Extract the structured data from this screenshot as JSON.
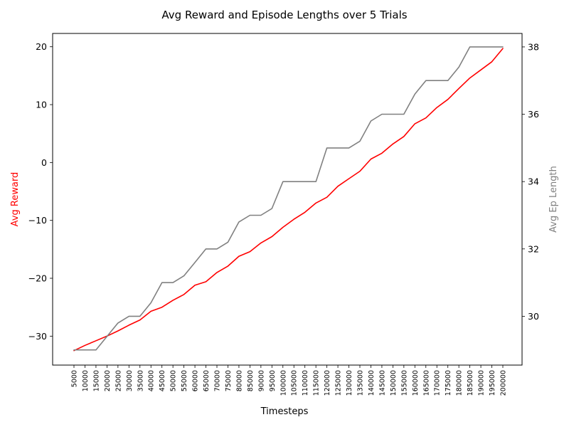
{
  "chart_data": {
    "type": "line",
    "title": "Avg Reward and Episode Lengths over 5 Trials",
    "xlabel": "Timesteps",
    "ylabel_left": "Avg Reward",
    "ylabel_right": "Avg Ep Length",
    "x": [
      5000,
      10000,
      15000,
      20000,
      25000,
      30000,
      35000,
      40000,
      45000,
      50000,
      55000,
      60000,
      65000,
      70000,
      75000,
      80000,
      85000,
      90000,
      95000,
      100000,
      105000,
      110000,
      115000,
      120000,
      125000,
      130000,
      135000,
      140000,
      145000,
      150000,
      155000,
      160000,
      165000,
      170000,
      175000,
      180000,
      185000,
      190000,
      195000,
      200000
    ],
    "x_tick_labels": [
      "5000",
      "10000",
      "15000",
      "20000",
      "25000",
      "30000",
      "35000",
      "40000",
      "45000",
      "50000",
      "55000",
      "60000",
      "65000",
      "70000",
      "75000",
      "80000",
      "85000",
      "90000",
      "95000",
      "100000",
      "105000",
      "110000",
      "115000",
      "120000",
      "125000",
      "130000",
      "135000",
      "140000",
      "145000",
      "150000",
      "155000",
      "160000",
      "165000",
      "170000",
      "175000",
      "180000",
      "185000",
      "190000",
      "195000",
      "200000"
    ],
    "left_axis": {
      "ylim": [
        -35,
        22.3
      ],
      "ticks": [
        -30,
        -20,
        -10,
        0,
        10,
        20
      ],
      "tick_labels": [
        "−30",
        "−20",
        "−10",
        "0",
        "10",
        "20"
      ],
      "color": "#ff0000"
    },
    "right_axis": {
      "ylim": [
        28.55,
        38.4
      ],
      "ticks": [
        30,
        32,
        34,
        36,
        38
      ],
      "tick_labels": [
        "30",
        "32",
        "34",
        "36",
        "38"
      ],
      "color": "#808080"
    },
    "series": [
      {
        "axis": "left",
        "color": "#ff0000",
        "values": [
          -32.5,
          -31.6,
          -30.8,
          -30.0,
          -29.1,
          -28.1,
          -27.2,
          -25.7,
          -25.0,
          -23.8,
          -22.8,
          -21.2,
          -20.6,
          -19.0,
          -17.9,
          -16.2,
          -15.4,
          -13.9,
          -12.8,
          -11.2,
          -9.8,
          -8.6,
          -7.0,
          -6.0,
          -4.1,
          -2.8,
          -1.5,
          0.6,
          1.6,
          3.2,
          4.5,
          6.7,
          7.7,
          9.5,
          10.9,
          12.8,
          14.6,
          16.0,
          17.4,
          19.7
        ]
      },
      {
        "axis": "right",
        "color": "#808080",
        "values": [
          29.0,
          29.0,
          29.0,
          29.4,
          29.8,
          30.0,
          30.0,
          30.4,
          31.0,
          31.0,
          31.2,
          31.6,
          32.0,
          32.0,
          32.2,
          32.8,
          33.0,
          33.0,
          33.2,
          34.0,
          34.0,
          34.0,
          34.0,
          35.0,
          35.0,
          35.0,
          35.2,
          35.8,
          36.0,
          36.0,
          36.0,
          36.6,
          37.0,
          37.0,
          37.0,
          37.4,
          38.0,
          38.0,
          38.0,
          38.0
        ]
      }
    ]
  }
}
